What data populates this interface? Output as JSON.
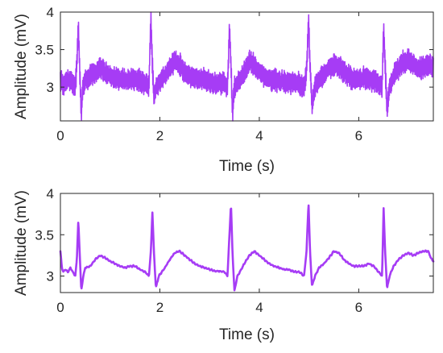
{
  "chart_data": [
    {
      "type": "line",
      "xlabel": "Time (s)",
      "ylabel": "Amplitude (mV)",
      "xlim": [
        0,
        7.5
      ],
      "ylim": [
        2.55,
        4.0
      ],
      "xticks": [
        0,
        2,
        4,
        6
      ],
      "yticks": [
        3,
        3.5,
        4
      ],
      "ytick_labels": [
        "3",
        "3.5",
        "4"
      ],
      "xtick_labels": [
        "0",
        "2",
        "4",
        "6"
      ],
      "grid": false,
      "color": "#a63cf5",
      "signal": "noisy ECG",
      "x": [
        0.0,
        0.05,
        0.1,
        0.15,
        0.2,
        0.25,
        0.3,
        0.33,
        0.36,
        0.39,
        0.42,
        0.45,
        0.5,
        0.6,
        0.7,
        0.8,
        0.9,
        1.0,
        1.1,
        1.2,
        1.3,
        1.4,
        1.5,
        1.6,
        1.7,
        1.78,
        1.82,
        1.85,
        1.88,
        1.92,
        1.98,
        2.1,
        2.2,
        2.3,
        2.4,
        2.5,
        2.6,
        2.7,
        2.8,
        2.9,
        3.0,
        3.1,
        3.2,
        3.3,
        3.36,
        3.4,
        3.43,
        3.46,
        3.5,
        3.56,
        3.7,
        3.8,
        3.9,
        4.0,
        4.1,
        4.2,
        4.3,
        4.4,
        4.5,
        4.6,
        4.7,
        4.8,
        4.9,
        4.95,
        4.99,
        5.02,
        5.06,
        5.12,
        5.2,
        5.3,
        5.4,
        5.5,
        5.6,
        5.7,
        5.8,
        5.9,
        6.0,
        6.1,
        6.2,
        6.3,
        6.4,
        6.47,
        6.5,
        6.53,
        6.57,
        6.62,
        6.7,
        6.8,
        6.9,
        7.0,
        7.1,
        7.2,
        7.3,
        7.4,
        7.5
      ],
      "y": [
        3.1,
        3.05,
        3.05,
        3.1,
        3.08,
        3.05,
        3.0,
        3.3,
        3.85,
        3.2,
        2.62,
        3.0,
        3.1,
        3.15,
        3.2,
        3.25,
        3.2,
        3.15,
        3.12,
        3.12,
        3.1,
        3.1,
        3.12,
        3.08,
        3.05,
        3.0,
        3.97,
        3.3,
        2.85,
        3.0,
        3.05,
        3.15,
        3.25,
        3.35,
        3.3,
        3.2,
        3.15,
        3.12,
        3.1,
        3.1,
        3.08,
        3.05,
        3.05,
        3.05,
        3.0,
        3.8,
        3.3,
        2.62,
        3.0,
        3.05,
        3.2,
        3.35,
        3.3,
        3.2,
        3.15,
        3.1,
        3.1,
        3.08,
        3.08,
        3.05,
        3.05,
        3.05,
        3.0,
        3.2,
        3.92,
        3.3,
        2.75,
        3.0,
        3.1,
        3.15,
        3.25,
        3.3,
        3.28,
        3.2,
        3.15,
        3.1,
        3.1,
        3.12,
        3.1,
        3.1,
        3.05,
        3.0,
        3.8,
        3.3,
        2.7,
        3.0,
        3.15,
        3.25,
        3.35,
        3.35,
        3.3,
        3.25,
        3.25,
        3.3,
        3.28
      ]
    },
    {
      "type": "line",
      "xlabel": "Time (s)",
      "ylabel": "Amplitude (mV)",
      "xlim": [
        0,
        7.5
      ],
      "ylim": [
        2.8,
        4.0
      ],
      "xticks": [
        0,
        2,
        4,
        6
      ],
      "yticks": [
        3,
        3.5,
        4
      ],
      "ytick_labels": [
        "3",
        "3.5",
        "4"
      ],
      "xtick_labels": [
        "0",
        "2",
        "4",
        "6"
      ],
      "grid": false,
      "color": "#a63cf5",
      "signal": "filtered ECG",
      "x": [
        0.0,
        0.03,
        0.06,
        0.1,
        0.15,
        0.2,
        0.25,
        0.3,
        0.33,
        0.36,
        0.39,
        0.42,
        0.46,
        0.5,
        0.6,
        0.7,
        0.8,
        0.9,
        1.0,
        1.1,
        1.2,
        1.3,
        1.4,
        1.5,
        1.6,
        1.7,
        1.78,
        1.82,
        1.85,
        1.88,
        1.92,
        1.98,
        2.1,
        2.2,
        2.3,
        2.4,
        2.5,
        2.6,
        2.7,
        2.8,
        2.9,
        3.0,
        3.1,
        3.2,
        3.3,
        3.36,
        3.4,
        3.43,
        3.46,
        3.5,
        3.56,
        3.7,
        3.8,
        3.9,
        4.0,
        4.1,
        4.2,
        4.3,
        4.4,
        4.5,
        4.6,
        4.7,
        4.8,
        4.9,
        4.95,
        4.99,
        5.02,
        5.06,
        5.12,
        5.2,
        5.3,
        5.4,
        5.5,
        5.6,
        5.7,
        5.8,
        5.9,
        6.0,
        6.1,
        6.2,
        6.3,
        6.4,
        6.47,
        6.5,
        6.53,
        6.57,
        6.62,
        6.7,
        6.8,
        6.9,
        7.0,
        7.1,
        7.2,
        7.3,
        7.4,
        7.45,
        7.5
      ],
      "y": [
        3.3,
        3.1,
        3.05,
        3.08,
        3.05,
        3.1,
        3.05,
        3.0,
        3.2,
        3.67,
        3.25,
        2.82,
        3.0,
        3.1,
        3.12,
        3.2,
        3.25,
        3.22,
        3.18,
        3.15,
        3.12,
        3.1,
        3.12,
        3.12,
        3.08,
        3.05,
        3.0,
        3.3,
        3.78,
        3.3,
        2.86,
        3.0,
        3.1,
        3.2,
        3.28,
        3.3,
        3.25,
        3.2,
        3.15,
        3.12,
        3.1,
        3.08,
        3.06,
        3.06,
        3.05,
        3.0,
        3.5,
        3.88,
        3.3,
        2.82,
        3.0,
        3.15,
        3.25,
        3.3,
        3.25,
        3.2,
        3.15,
        3.12,
        3.1,
        3.08,
        3.08,
        3.05,
        3.05,
        3.0,
        3.3,
        3.89,
        3.3,
        2.88,
        3.0,
        3.1,
        3.15,
        3.22,
        3.3,
        3.28,
        3.2,
        3.15,
        3.12,
        3.12,
        3.12,
        3.15,
        3.12,
        3.05,
        3.0,
        3.83,
        3.3,
        2.85,
        3.0,
        3.12,
        3.2,
        3.25,
        3.28,
        3.25,
        3.28,
        3.3,
        3.3,
        3.22,
        3.18
      ]
    }
  ]
}
